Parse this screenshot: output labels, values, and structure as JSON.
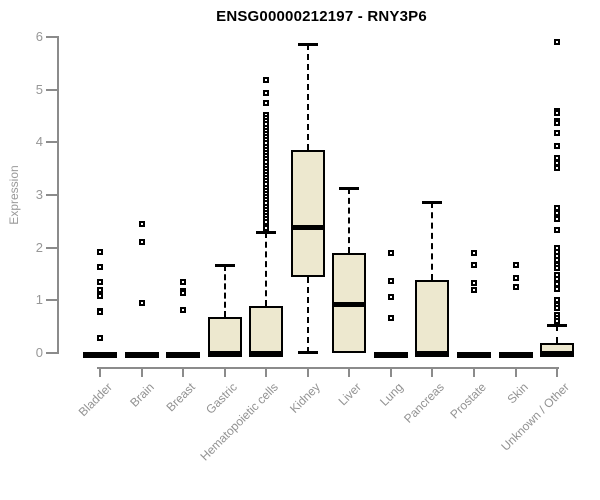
{
  "title": "ENSG00000212197 - RNY3P6",
  "chart_data": {
    "type": "boxplot",
    "title": "ENSG00000212197 - RNY3P6",
    "xlabel": "",
    "ylabel": "Expression",
    "ylim": [
      0,
      6
    ],
    "y_ticks": [
      "0",
      "1",
      "2",
      "3",
      "4",
      "5",
      "6"
    ],
    "grid": false,
    "legend": false,
    "categories": [
      "Bladder",
      "Brain",
      "Breast",
      "Gastric",
      "Hematopoietic cells",
      "Kidney",
      "Liver",
      "Lung",
      "Pancreas",
      "Prostate",
      "Skin",
      "Unknown / Other"
    ],
    "series": [
      {
        "name": "Bladder",
        "whisker_low": 0,
        "q1": 0,
        "median": 0,
        "q3": 0,
        "whisker_high": 0,
        "outliers": [
          1.92,
          1.63,
          1.35,
          1.2,
          1.09,
          0.8,
          0.78,
          0.28
        ]
      },
      {
        "name": "Brain",
        "whisker_low": 0,
        "q1": 0,
        "median": 0,
        "q3": 0,
        "whisker_high": 0,
        "outliers": [
          2.45,
          2.11,
          0.94
        ]
      },
      {
        "name": "Breast",
        "whisker_low": 0,
        "q1": 0,
        "median": 0,
        "q3": 0,
        "whisker_high": 0,
        "outliers": [
          1.35,
          1.18,
          1.14,
          0.82
        ]
      },
      {
        "name": "Gastric",
        "whisker_low": 0,
        "q1": 0,
        "median": 0,
        "q3": 0.69,
        "whisker_high": 1.67,
        "outliers": []
      },
      {
        "name": "Hematopoietic cells",
        "whisker_low": 0,
        "q1": 0,
        "median": 0,
        "q3": 0.9,
        "whisker_high": 2.29,
        "outliers": [
          5.18,
          4.93,
          4.74,
          4.52,
          4.46,
          4.4,
          4.34,
          4.28,
          4.22,
          4.16,
          4.1,
          4.04,
          3.98,
          3.92,
          3.86,
          3.8,
          3.74,
          3.68,
          3.62,
          3.56,
          3.5,
          3.44,
          3.38,
          3.32,
          3.26,
          3.2,
          3.14,
          3.08,
          3.02,
          2.96,
          2.9,
          2.84,
          2.78,
          2.72,
          2.66,
          2.6,
          2.54,
          2.48,
          2.42,
          2.37
        ]
      },
      {
        "name": "Kidney",
        "whisker_low": 0,
        "q1": 1.44,
        "median": 2.39,
        "q3": 3.85,
        "whisker_high": 5.86,
        "outliers": []
      },
      {
        "name": "Liver",
        "whisker_low": 0,
        "q1": 0,
        "median": 0.93,
        "q3": 1.89,
        "whisker_high": 3.13,
        "outliers": []
      },
      {
        "name": "Lung",
        "whisker_low": 0,
        "q1": 0,
        "median": 0,
        "q3": 0,
        "whisker_high": 0,
        "outliers": [
          1.9,
          1.37,
          1.07,
          0.66
        ]
      },
      {
        "name": "Pancreas",
        "whisker_low": 0,
        "q1": 0,
        "median": 0,
        "q3": 1.39,
        "whisker_high": 2.87,
        "outliers": []
      },
      {
        "name": "Prostate",
        "whisker_low": 0,
        "q1": 0,
        "median": 0,
        "q3": 0,
        "whisker_high": 0,
        "outliers": [
          1.9,
          1.67,
          1.33,
          1.2
        ]
      },
      {
        "name": "Skin",
        "whisker_low": 0,
        "q1": 0,
        "median": 0,
        "q3": 0,
        "whisker_high": 0,
        "outliers": [
          1.67,
          1.42,
          1.25
        ]
      },
      {
        "name": "Unknown / Other",
        "whisker_low": 0,
        "q1": 0,
        "median": 0,
        "q3": 0.19,
        "whisker_high": 0.53,
        "outliers": [
          5.91,
          4.6,
          4.55,
          4.41,
          4.36,
          4.17,
          3.93,
          3.7,
          3.6,
          3.51,
          2.75,
          2.65,
          2.55,
          2.34,
          1.99,
          1.92,
          1.85,
          1.76,
          1.68,
          1.61,
          1.48,
          1.4,
          1.31,
          1.22,
          1.01,
          0.92,
          0.85,
          0.72,
          0.66,
          0.6
        ]
      }
    ],
    "colors": {
      "box_fill": "#EDE8CF",
      "box_border": "#000000",
      "median": "#000000",
      "whisker": "#000000",
      "outlier": "#000000",
      "axis": "#8B8B8B",
      "tick_label": "#979797",
      "title": "#000000"
    }
  }
}
